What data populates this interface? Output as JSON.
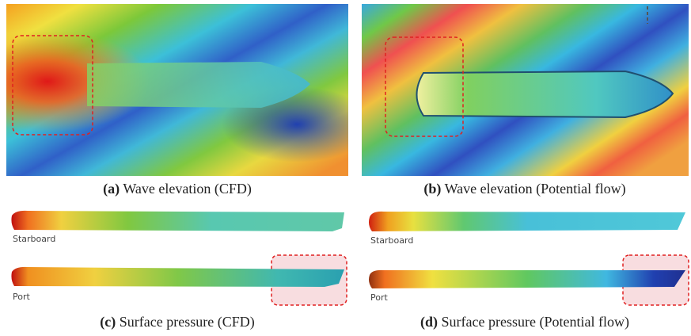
{
  "panels": [
    {
      "label": "(a)",
      "caption": "Wave elevation (CFD)"
    },
    {
      "label": "(b)",
      "caption": "Wave elevation (Potential flow)"
    },
    {
      "label": "(c)",
      "caption": "Surface pressure (CFD)",
      "hull_labels": [
        "Starboard",
        "Port"
      ]
    },
    {
      "label": "(d)",
      "caption": "Surface pressure (Potential flow)",
      "hull_labels": [
        "Starboard",
        "Port"
      ]
    }
  ]
}
